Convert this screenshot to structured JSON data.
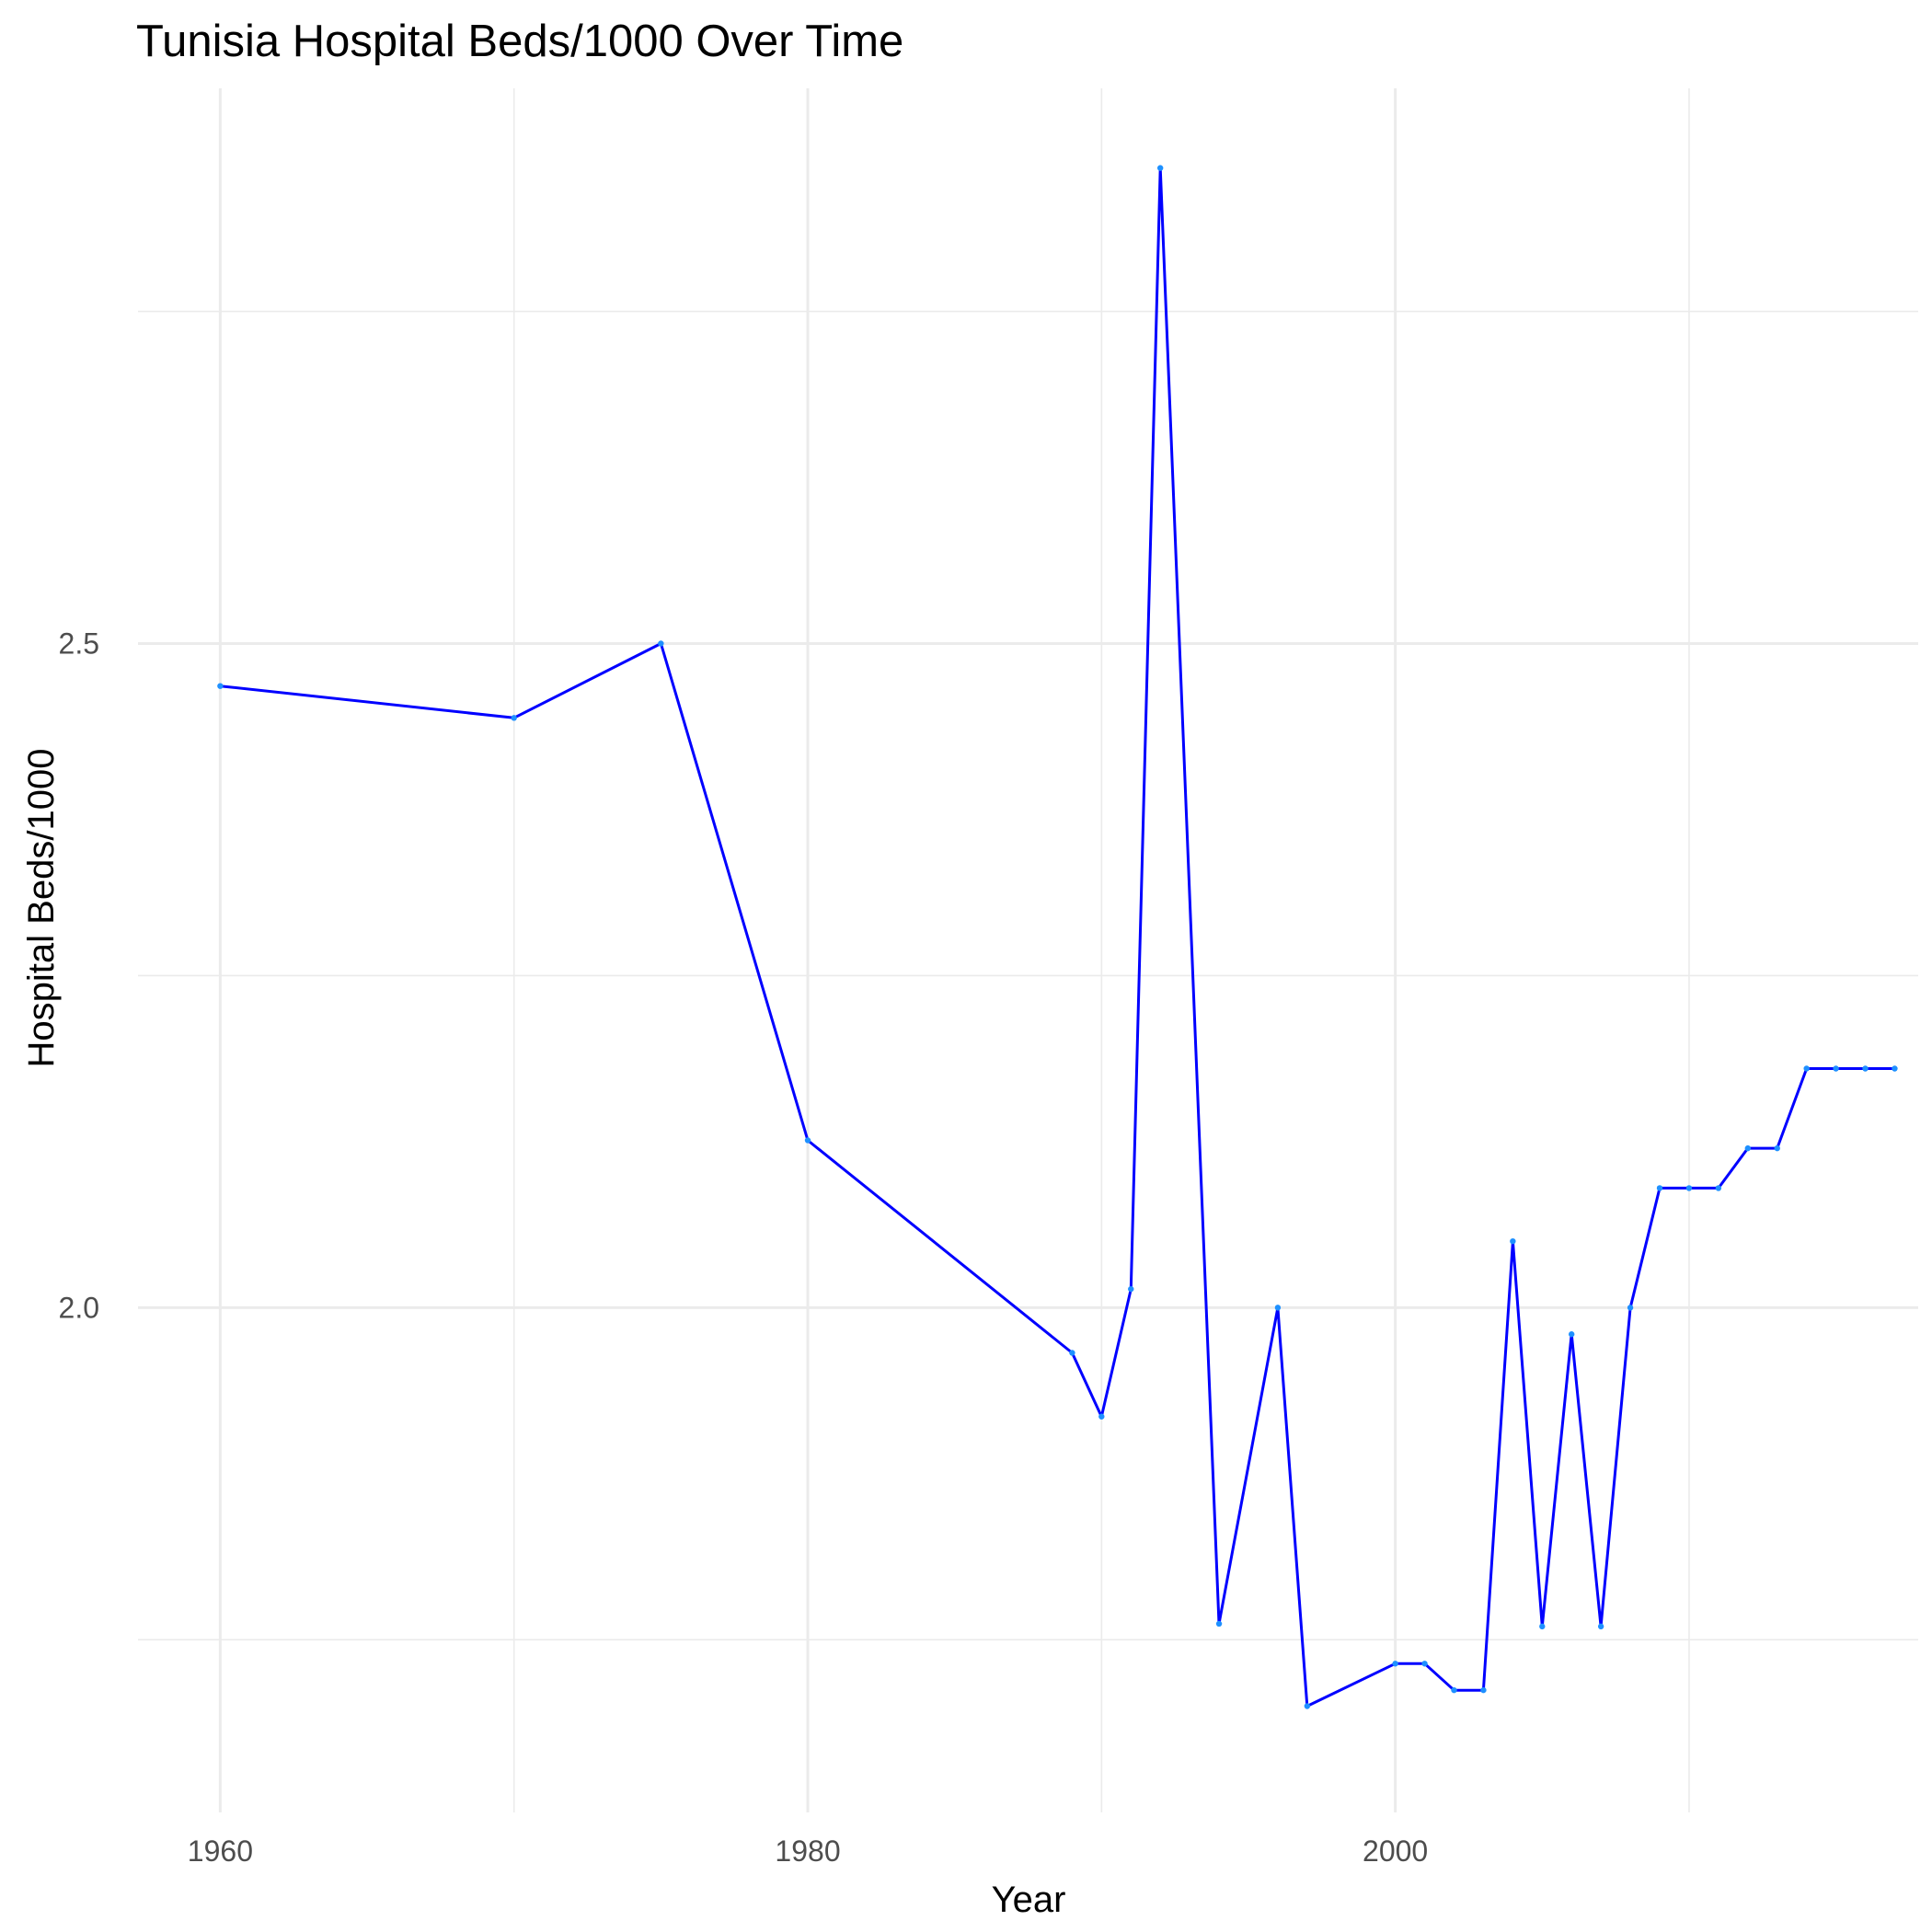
{
  "chart_data": {
    "type": "line",
    "title": "Tunisia Hospital Beds/1000 Over Time",
    "xlabel": "Year",
    "ylabel": "Hospital Beds/1000",
    "xlim": [
      1957.2,
      2017.8
    ],
    "ylim": [
      1.62,
      2.918
    ],
    "x_ticks": [
      1960,
      1980,
      2000
    ],
    "x_tick_labels": [
      "1960",
      "1980",
      "2000"
    ],
    "x_minor_ticks": [
      1970,
      1990,
      2010
    ],
    "y_ticks": [
      2.0,
      2.5
    ],
    "y_tick_labels": [
      "2.0",
      "2.5"
    ],
    "y_minor_ticks": [
      1.75,
      2.25,
      2.75
    ],
    "grid": true,
    "legend": "none",
    "line_color": "#0000ff",
    "point_color": "#1e90ff",
    "series": [
      {
        "x": [
          1960,
          1970,
          1975,
          1980,
          1989,
          1990,
          1991,
          1992,
          1994,
          1996,
          1997,
          2000,
          2001,
          2002,
          2003,
          2004,
          2005,
          2006,
          2007,
          2008,
          2009,
          2010,
          2011,
          2012,
          2013,
          2014,
          2015,
          2016,
          2017
        ],
        "values": [
          2.468,
          2.444,
          2.5,
          2.126,
          1.966,
          1.918,
          2.014,
          2.858,
          1.762,
          2.0,
          1.7,
          1.732,
          1.732,
          1.712,
          1.712,
          2.05,
          1.76,
          1.98,
          1.76,
          2.0,
          2.09,
          2.09,
          2.09,
          2.12,
          2.12,
          2.18,
          2.18,
          2.18,
          2.18
        ]
      }
    ]
  }
}
